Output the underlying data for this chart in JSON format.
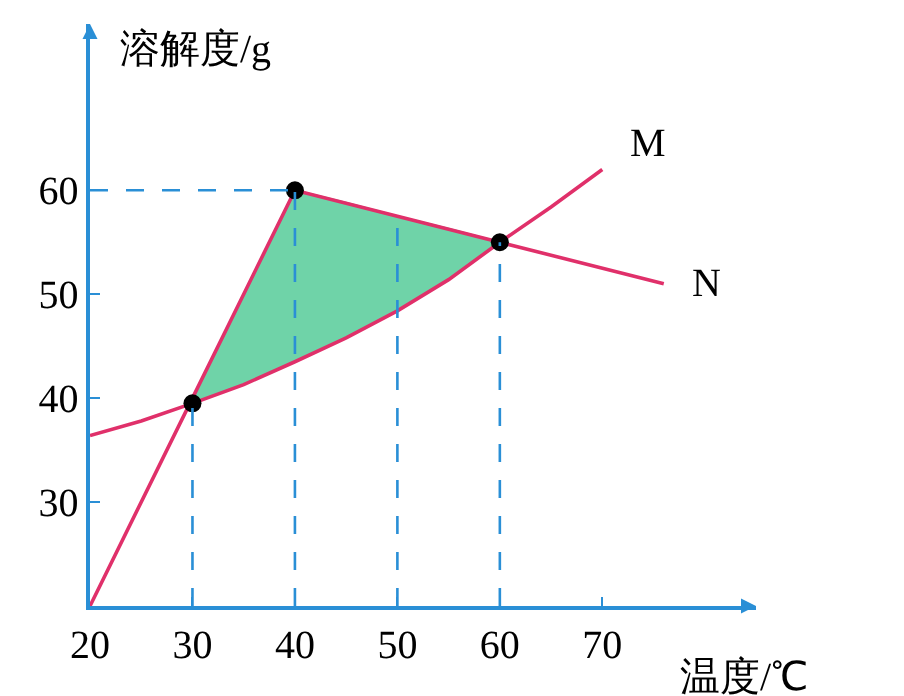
{
  "chart_data": {
    "type": "line",
    "xlabel": "温度/℃",
    "ylabel": "溶解度/g",
    "xlim": [
      20,
      85
    ],
    "ylim": [
      20,
      76
    ],
    "xticks": [
      20,
      30,
      40,
      50,
      60,
      70
    ],
    "yticks": [
      30,
      40,
      50,
      60
    ],
    "legend": false,
    "line_style": "solid",
    "series": [
      {
        "name": "M",
        "color": "#e0306a",
        "x": [
          20,
          25,
          30,
          35,
          40,
          45,
          50,
          55,
          60,
          65,
          70
        ],
        "values": [
          36.4,
          37.8,
          39.5,
          41.3,
          43.5,
          45.8,
          48.4,
          51.4,
          55,
          58.4,
          62
        ]
      },
      {
        "name": "N",
        "color": "#e0306a",
        "x": [
          20,
          30,
          40,
          50,
          60,
          76
        ],
        "values": [
          20,
          40,
          60,
          57.5,
          55,
          51
        ]
      },
      {
        "type": "area",
        "color": "#6fd3a8",
        "x": [
          30,
          35,
          40,
          45,
          50,
          55,
          60
        ],
        "values": [
          40,
          50,
          60,
          58.8,
          57.5,
          56.3,
          55
        ]
      },
      {
        "type": "scatter",
        "color": "#000000",
        "marker": "circle",
        "x": [
          30,
          40,
          60
        ],
        "values": [
          39.5,
          60,
          55
        ]
      }
    ],
    "ref_lines": [
      {
        "axis": "x",
        "value": 30,
        "color": "#2a8fd6",
        "line_style": "dashed"
      },
      {
        "axis": "x",
        "value": 40,
        "color": "#2a8fd6",
        "line_style": "dashed"
      },
      {
        "axis": "x",
        "value": 50,
        "color": "#2a8fd6",
        "line_style": "dashed"
      },
      {
        "axis": "x",
        "value": 60,
        "color": "#2a8fd6",
        "line_style": "dashed"
      },
      {
        "axis": "y",
        "value": 60,
        "color": "#2a8fd6",
        "line_style": "dashed"
      }
    ]
  }
}
